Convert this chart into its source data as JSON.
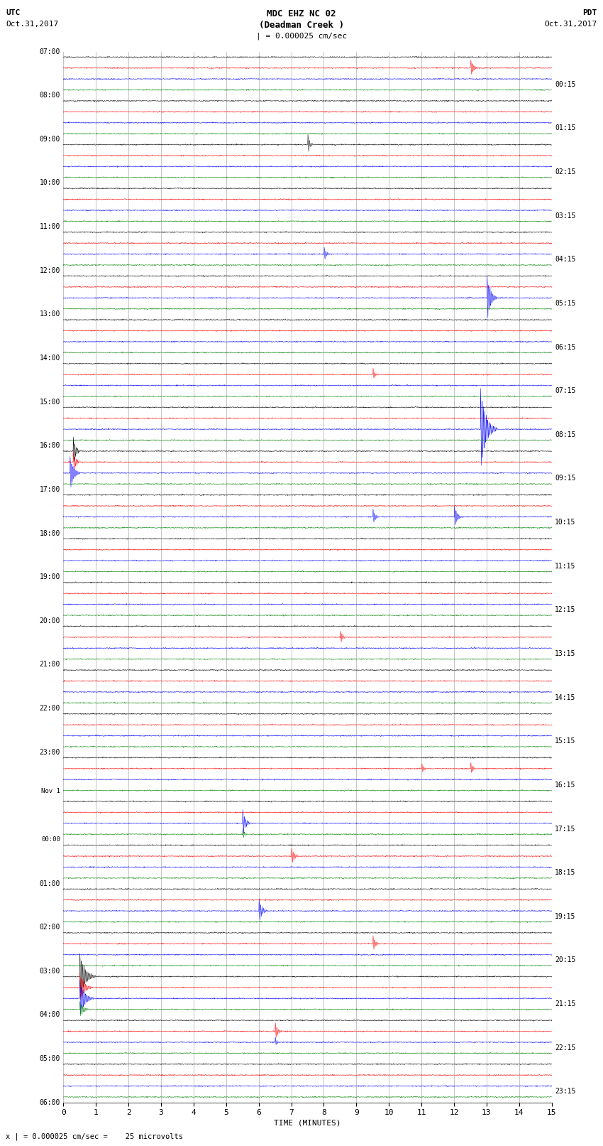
{
  "title_line1": "MDC EHZ NC 02",
  "title_line2": "(Deadman Creek )",
  "title_line3": "| = 0.000025 cm/sec",
  "label_utc": "UTC",
  "label_pdt": "PDT",
  "label_date_left": "Oct.31,2017",
  "label_date_right": "Oct.31,2017",
  "xlabel": "TIME (MINUTES)",
  "footer": "x | = 0.000025 cm/sec =    25 microvolts",
  "left_times": [
    "07:00",
    "08:00",
    "09:00",
    "10:00",
    "11:00",
    "12:00",
    "13:00",
    "14:00",
    "15:00",
    "16:00",
    "17:00",
    "18:00",
    "19:00",
    "20:00",
    "21:00",
    "22:00",
    "23:00",
    "Nov 1",
    "00:00",
    "01:00",
    "02:00",
    "03:00",
    "04:00",
    "05:00",
    "06:00"
  ],
  "right_times": [
    "00:15",
    "01:15",
    "02:15",
    "03:15",
    "04:15",
    "05:15",
    "06:15",
    "07:15",
    "08:15",
    "09:15",
    "10:15",
    "11:15",
    "12:15",
    "13:15",
    "14:15",
    "15:15",
    "16:15",
    "17:15",
    "18:15",
    "19:15",
    "20:15",
    "21:15",
    "22:15",
    "23:15"
  ],
  "n_rows": 24,
  "traces_per_row": 4,
  "trace_colors": [
    "black",
    "red",
    "blue",
    "green"
  ],
  "bg_color": "white",
  "grid_color": "#999999",
  "noise_amplitude": 0.025,
  "minutes_per_row": 15,
  "xlim": [
    0,
    15
  ],
  "xticks": [
    0,
    1,
    2,
    3,
    4,
    5,
    6,
    7,
    8,
    9,
    10,
    11,
    12,
    13,
    14,
    15
  ],
  "fig_width": 8.5,
  "fig_height": 16.13,
  "dpi": 100,
  "events": [
    {
      "row": 0,
      "trace": 1,
      "time": 12.5,
      "amp": 3.0,
      "dur": 30
    },
    {
      "row": 2,
      "trace": 0,
      "time": 7.5,
      "amp": 4.0,
      "dur": 20
    },
    {
      "row": 4,
      "trace": 2,
      "time": 8.0,
      "amp": 2.5,
      "dur": 25
    },
    {
      "row": 5,
      "trace": 2,
      "time": 13.0,
      "amp": 8.0,
      "dur": 40
    },
    {
      "row": 7,
      "trace": 1,
      "time": 9.5,
      "amp": 2.5,
      "dur": 20
    },
    {
      "row": 8,
      "trace": 2,
      "time": 12.8,
      "amp": 14.0,
      "dur": 60
    },
    {
      "row": 9,
      "trace": 0,
      "time": 0.3,
      "amp": 5.0,
      "dur": 30
    },
    {
      "row": 9,
      "trace": 1,
      "time": 0.3,
      "amp": 4.0,
      "dur": 30
    },
    {
      "row": 9,
      "trace": 2,
      "time": 0.2,
      "amp": 6.0,
      "dur": 40
    },
    {
      "row": 10,
      "trace": 2,
      "time": 9.5,
      "amp": 3.0,
      "dur": 25
    },
    {
      "row": 10,
      "trace": 2,
      "time": 12.0,
      "amp": 4.0,
      "dur": 30
    },
    {
      "row": 13,
      "trace": 1,
      "time": 8.5,
      "amp": 2.5,
      "dur": 25
    },
    {
      "row": 16,
      "trace": 1,
      "time": 11.0,
      "amp": 2.0,
      "dur": 20
    },
    {
      "row": 16,
      "trace": 1,
      "time": 12.5,
      "amp": 2.5,
      "dur": 20
    },
    {
      "row": 17,
      "trace": 2,
      "time": 5.5,
      "amp": 5.0,
      "dur": 30
    },
    {
      "row": 17,
      "trace": 3,
      "time": 5.5,
      "amp": 2.0,
      "dur": 20
    },
    {
      "row": 18,
      "trace": 1,
      "time": 7.0,
      "amp": 3.0,
      "dur": 30
    },
    {
      "row": 19,
      "trace": 2,
      "time": 6.0,
      "amp": 4.0,
      "dur": 35
    },
    {
      "row": 20,
      "trace": 1,
      "time": 9.5,
      "amp": 3.0,
      "dur": 25
    },
    {
      "row": 21,
      "trace": 0,
      "time": 0.5,
      "amp": 8.0,
      "dur": 60
    },
    {
      "row": 21,
      "trace": 1,
      "time": 0.5,
      "amp": 5.0,
      "dur": 50
    },
    {
      "row": 21,
      "trace": 2,
      "time": 0.5,
      "amp": 6.0,
      "dur": 55
    },
    {
      "row": 21,
      "trace": 3,
      "time": 0.5,
      "amp": 3.0,
      "dur": 40
    },
    {
      "row": 22,
      "trace": 1,
      "time": 6.5,
      "amp": 3.0,
      "dur": 30
    },
    {
      "row": 22,
      "trace": 2,
      "time": 6.5,
      "amp": 2.0,
      "dur": 20
    }
  ]
}
